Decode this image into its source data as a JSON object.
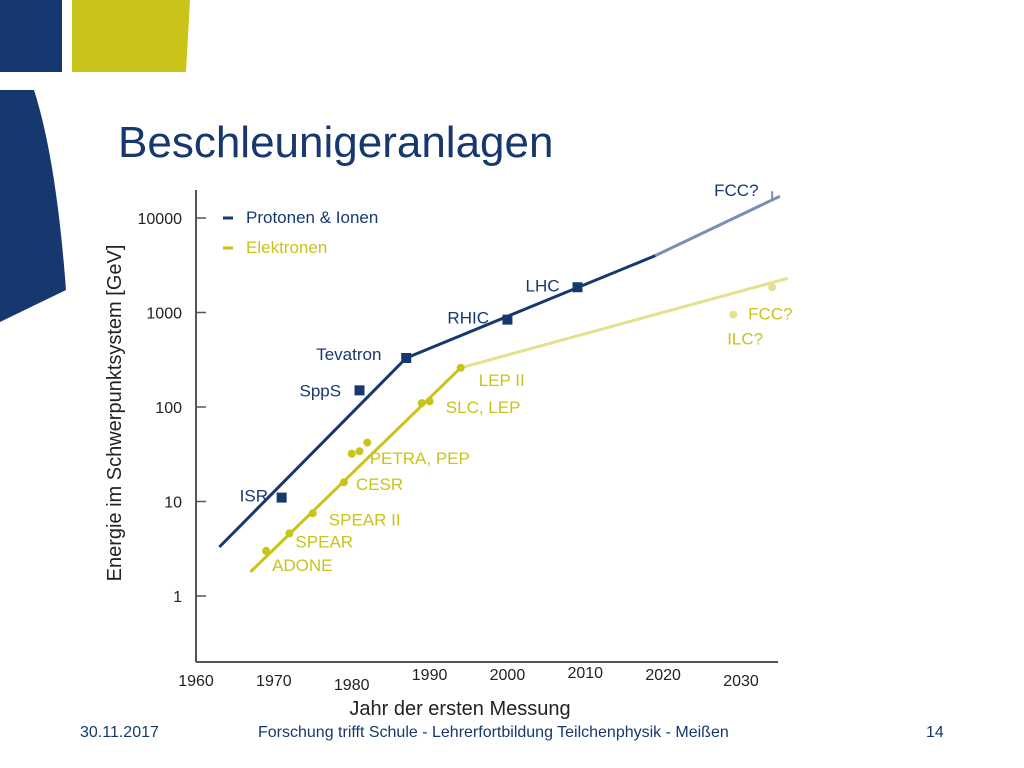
{
  "slide": {
    "title": "Beschleunigeranlagen",
    "footer": {
      "date": "30.11.2017",
      "center": "Forschung trifft Schule - Lehrerfortbildung Teilchenphysik -  Meißen",
      "page": "14"
    }
  },
  "colors": {
    "navy": "#17386e",
    "lime": "#c9c31a",
    "light_navy": "#7a8fb5",
    "light_lime": "#e3e08f",
    "axis": "#555555"
  },
  "chart_data": {
    "type": "scatter",
    "xlabel": "Jahr der ersten Messung",
    "ylabel": "Energie im Schwerpunktsystem [GeV]",
    "x_ticks": [
      "1960",
      "1970",
      "1980",
      "1990",
      "2000",
      "2010",
      "2020",
      "2030"
    ],
    "y_ticks": [
      "1",
      "10",
      "100",
      "1000",
      "10000"
    ],
    "y_scale": "log",
    "xlim": [
      1960,
      2030
    ],
    "ylim": [
      1,
      10000
    ],
    "legend": [
      {
        "label": "Protonen & Ionen",
        "color": "#17386e"
      },
      {
        "label": "Elektronen",
        "color": "#c9c31a"
      }
    ],
    "series": [
      {
        "name": "Protonen & Ionen",
        "color": "#17386e",
        "marker": "square",
        "points": [
          {
            "label": "ISR",
            "x": 1971,
            "y": 11
          },
          {
            "label": "SppS",
            "x": 1981,
            "y": 150
          },
          {
            "label": "Tevatron",
            "x": 1987,
            "y": 330
          },
          {
            "label": "RHIC",
            "x": 2000,
            "y": 840
          },
          {
            "label": "LHC",
            "x": 2009,
            "y": 1850
          }
        ],
        "trend": [
          [
            1963,
            3.3
          ],
          [
            1987,
            330
          ],
          [
            2019,
            4000
          ]
        ],
        "projection": {
          "points": [
            [
              2019,
              4000
            ],
            [
              2035,
              17000
            ]
          ],
          "color": "#7a8fb5"
        },
        "future": [
          {
            "label": "FCC?",
            "x": 2034,
            "y": 17000
          }
        ]
      },
      {
        "name": "Elektronen",
        "color": "#c9c31a",
        "marker": "circle",
        "points": [
          {
            "label": "ADONE",
            "x": 1969,
            "y": 3
          },
          {
            "label": "SPEAR",
            "x": 1972,
            "y": 4.6
          },
          {
            "label": "SPEAR II",
            "x": 1975,
            "y": 7.5
          },
          {
            "label": "CESR",
            "x": 1979,
            "y": 16
          },
          {
            "label": "PETRA, PEP",
            "x": 1980,
            "y": 32
          },
          {
            "label": "",
            "x": 1981,
            "y": 34
          },
          {
            "label": "",
            "x": 1982,
            "y": 42
          },
          {
            "label": "SLC, LEP",
            "x": 1989,
            "y": 110
          },
          {
            "label": "",
            "x": 1990,
            "y": 115
          },
          {
            "label": "LEP II",
            "x": 1994,
            "y": 260
          }
        ],
        "trend": [
          [
            1967,
            1.8
          ],
          [
            1994,
            260
          ]
        ],
        "projection": {
          "points": [
            [
              1994,
              260
            ],
            [
              2036,
              2300
            ]
          ],
          "color": "#e3e08f"
        },
        "future": [
          {
            "label": "ILC?",
            "x": 2029,
            "y": 950
          },
          {
            "label": "FCC?",
            "x": 2034,
            "y": 1850
          }
        ]
      }
    ]
  }
}
